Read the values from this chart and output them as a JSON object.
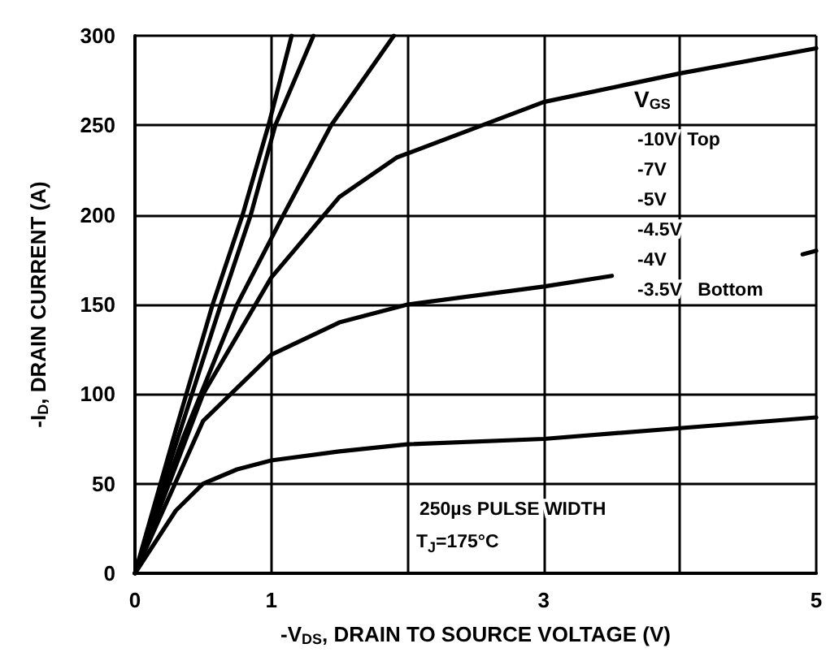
{
  "chart_data": {
    "type": "line",
    "xlabel": "-V$_{DS}$, DRAIN TO SOURCE VOLTAGE (V)",
    "ylabel": "-I$_{D}$, DRAIN CURRENT (A)",
    "series": [
      {
        "color": "#000000",
        "x": [
          0,
          0.3,
          0.57,
          0.79,
          0.98,
          1.15
        ],
        "values": [
          0,
          80,
          150,
          200,
          250,
          300
        ]
      },
      {
        "color": "#000000",
        "x": [
          0,
          0.3,
          0.63,
          0.85,
          1.03,
          1.31
        ],
        "values": [
          0,
          72,
          150,
          200,
          250,
          300
        ]
      },
      {
        "color": "#000000",
        "x": [
          0,
          0.35,
          0.75,
          1.09,
          1.44,
          1.9
        ],
        "values": [
          0,
          75,
          150,
          200,
          250,
          300
        ]
      },
      {
        "color": "#000000",
        "x": [
          0,
          0.5,
          1,
          1.5,
          1.92,
          3,
          4,
          5
        ],
        "values": [
          0,
          100,
          165,
          210,
          232,
          263,
          279,
          293
        ]
      },
      {
        "color": "#000000",
        "x": [
          0,
          0.5,
          1,
          1.5,
          2,
          3,
          3.5,
          4.2,
          4.9,
          5
        ],
        "values": [
          0,
          85,
          122,
          140,
          150,
          160,
          166,
          null,
          178,
          180
        ]
      },
      {
        "color": "#000000",
        "x": [
          0,
          0.3,
          0.5,
          0.75,
          1,
          1.5,
          2,
          3,
          4,
          5
        ],
        "values": [
          0,
          35,
          50,
          58,
          63,
          68,
          72,
          75,
          81,
          87
        ]
      }
    ],
    "xlim": [
      0,
      5
    ],
    "xticks": [
      0,
      1,
      {
        "value": 2,
        "label": null
      },
      3,
      {
        "value": 4,
        "label": null
      },
      5
    ],
    "ylim": [
      0,
      300
    ],
    "yticks": [
      0,
      50,
      100,
      150,
      200,
      250,
      300
    ],
    "grid": true,
    "marker": "none",
    "line_style": "solid",
    "annotations": [
      "V$_{GS}$",
      "-10V  Top",
      "-7V",
      "-5V",
      "-4.5V",
      "-4V",
      "-3.5V   Bottom",
      "250µs PULSE WIDTH",
      "T$_{J}$=175°C"
    ]
  }
}
